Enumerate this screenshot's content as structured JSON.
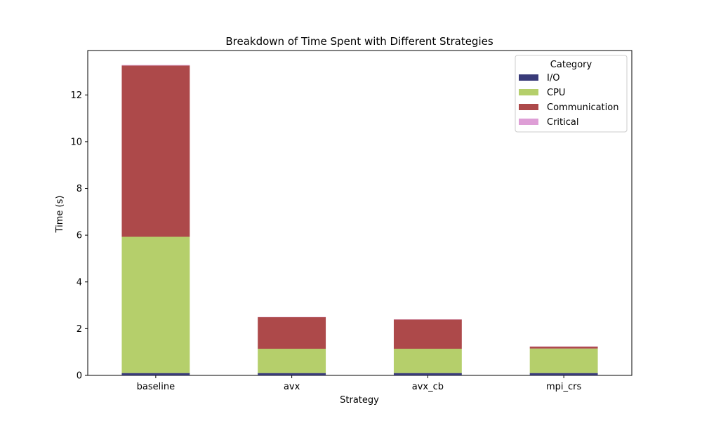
{
  "chart_data": {
    "type": "bar",
    "stacked": true,
    "title": "Breakdown of Time Spent with Different Strategies",
    "xlabel": "Strategy",
    "ylabel": "Time (s)",
    "categories": [
      "baseline",
      "avx",
      "avx_cb",
      "mpi_crs"
    ],
    "ylim": [
      0,
      13.9
    ],
    "yticks": [
      0,
      2,
      4,
      6,
      8,
      10,
      12
    ],
    "ytick_labels": [
      "0",
      "2",
      "4",
      "6",
      "8",
      "10",
      "12"
    ],
    "grid": false,
    "legend": {
      "title": "Category",
      "position": "top-right"
    },
    "series": [
      {
        "name": "I/O",
        "color": "#393b79",
        "values": [
          0.1,
          0.1,
          0.1,
          0.1
        ]
      },
      {
        "name": "CPU",
        "color": "#b5cf6b",
        "values": [
          5.83,
          1.04,
          1.04,
          1.05
        ]
      },
      {
        "name": "Communication",
        "color": "#ad494a",
        "values": [
          7.33,
          1.35,
          1.25,
          0.08
        ]
      },
      {
        "name": "Critical",
        "color": "#de9ed6",
        "values": [
          0.02,
          0.01,
          0.01,
          0.01
        ]
      }
    ]
  }
}
